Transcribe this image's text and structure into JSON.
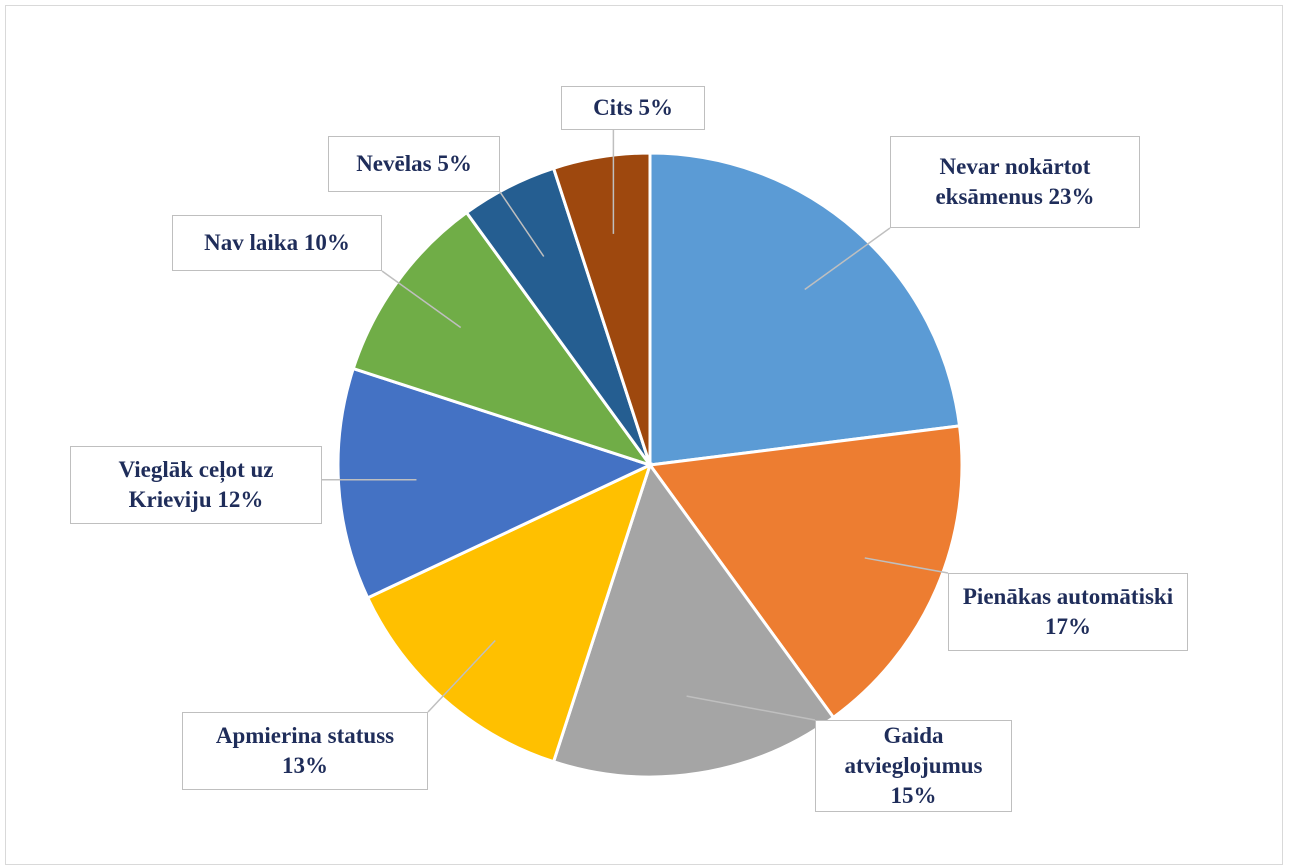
{
  "chart_data": {
    "type": "pie",
    "categories": [
      "Nevar nokārtot eksāmenus",
      "Pienākas automātiski",
      "Gaida atvieglojumus",
      "Apmierina statuss",
      "Vieglāk ceļot uz Krieviju",
      "Nav laika",
      "Nevēlas",
      "Cits"
    ],
    "values": [
      23,
      17,
      15,
      13,
      12,
      10,
      5,
      5
    ],
    "value_labels": [
      "23%",
      "17%",
      "15%",
      "13%",
      "12%",
      "10%",
      "5%",
      "5%"
    ],
    "colors": [
      "#5b9bd5",
      "#ed7d31",
      "#a5a5a5",
      "#ffc000",
      "#4472c4",
      "#70ad47",
      "#255e91",
      "#9e480e"
    ]
  }
}
